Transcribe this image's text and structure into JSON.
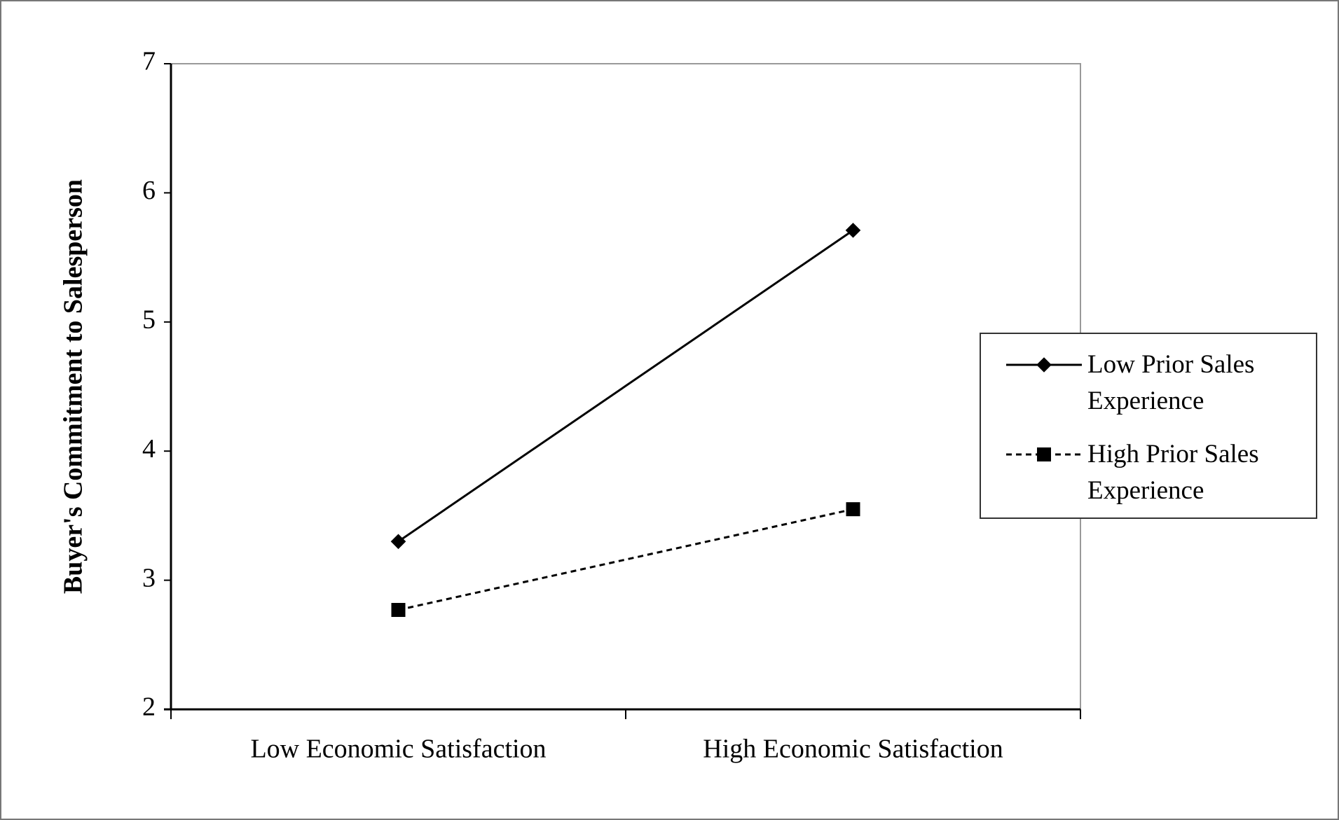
{
  "chart_data": {
    "type": "line",
    "y_label": "Buyer's Commitment to Salesperson",
    "categories": [
      "Low Economic Satisfaction",
      "High Economic Satisfaction"
    ],
    "series": [
      {
        "name": "Low Prior Sales Experience",
        "color": "#000000",
        "marker": "diamond",
        "line_style": "solid",
        "values": [
          3.3,
          5.71
        ]
      },
      {
        "name": "High Prior Sales Experience",
        "color": "#000000",
        "marker": "square",
        "line_style": "dashed",
        "values": [
          2.77,
          3.55
        ]
      }
    ],
    "ylim": [
      2,
      7
    ],
    "yticks": [
      2,
      3,
      4,
      5,
      6,
      7
    ],
    "grid": false,
    "legend": "right"
  }
}
